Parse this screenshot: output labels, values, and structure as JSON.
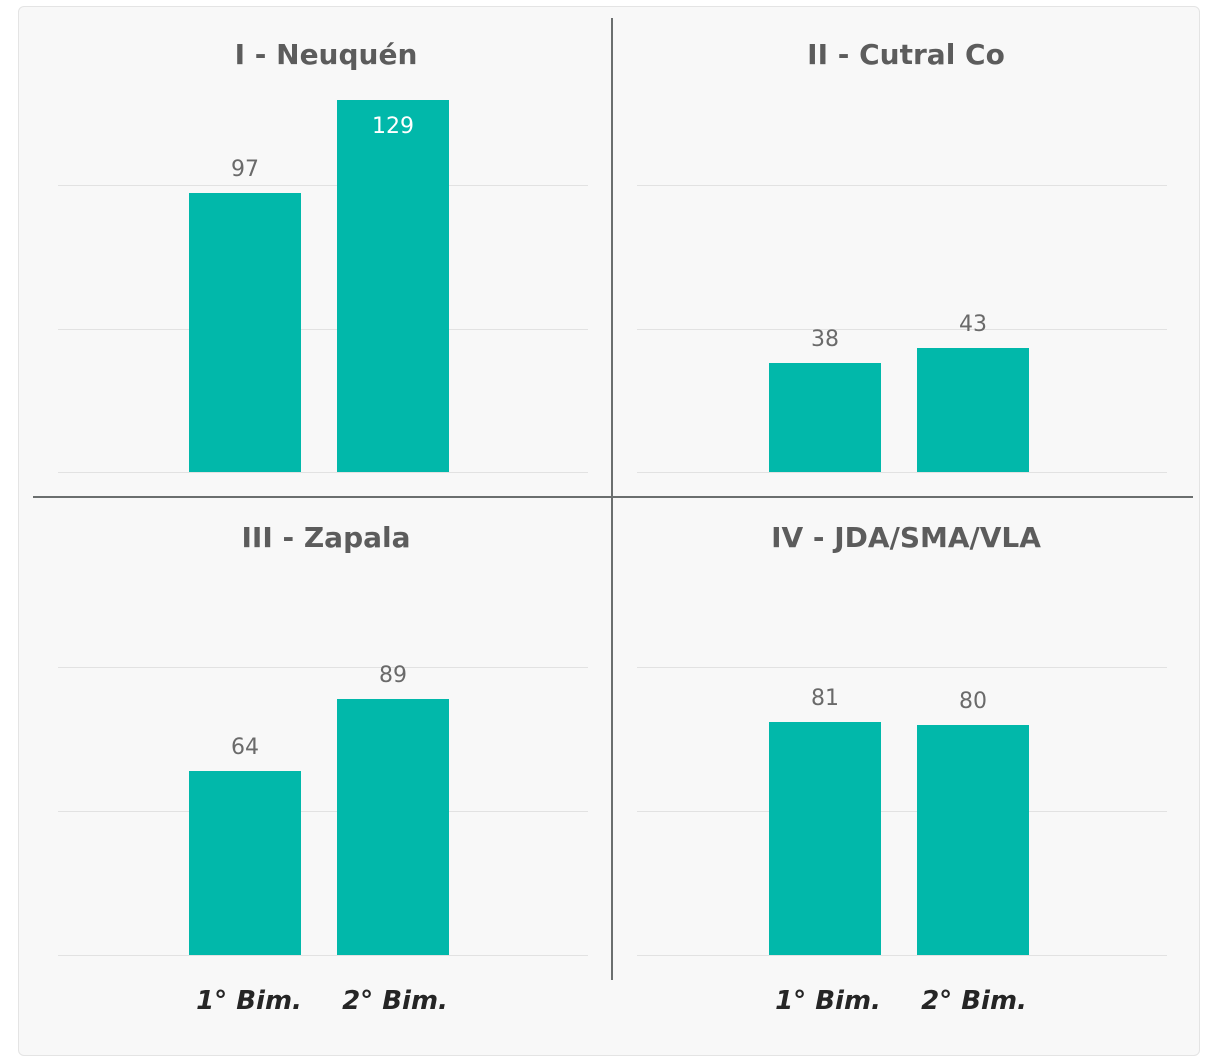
{
  "chart_data": [
    {
      "type": "bar",
      "title": "I - Neuquén",
      "categories": [
        "1° Bim.",
        "2° Bim."
      ],
      "values": [
        97,
        129
      ],
      "ylim": [
        0,
        150
      ],
      "grid": true,
      "color": "#01b8aa"
    },
    {
      "type": "bar",
      "title": "II - Cutral Co",
      "categories": [
        "1° Bim.",
        "2° Bim."
      ],
      "values": [
        38,
        43
      ],
      "ylim": [
        0,
        150
      ],
      "grid": true,
      "color": "#01b8aa"
    },
    {
      "type": "bar",
      "title": "III - Zapala",
      "categories": [
        "1° Bim.",
        "2° Bim."
      ],
      "values": [
        64,
        89
      ],
      "ylim": [
        0,
        100
      ],
      "grid": true,
      "color": "#01b8aa"
    },
    {
      "type": "bar",
      "title": "IV - JDA/SMA/VLA",
      "categories": [
        "1° Bim.",
        "2° Bim."
      ],
      "values": [
        81,
        80
      ],
      "ylim": [
        0,
        100
      ],
      "grid": true,
      "color": "#01b8aa"
    }
  ],
  "x_axis_labels": {
    "left": [
      "1° Bim.",
      "2° Bim."
    ],
    "right": [
      "1° Bim.",
      "2° Bim."
    ]
  }
}
